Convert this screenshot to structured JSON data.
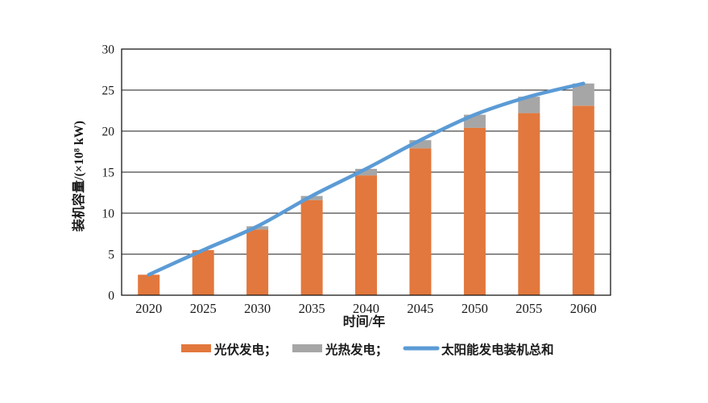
{
  "figure": {
    "background": "#ffffff"
  },
  "chart_data": {
    "type": "bar",
    "subtype": "stacked-bars-with-line-overlay",
    "title": "",
    "categories": [
      "2020",
      "2025",
      "2030",
      "2035",
      "2040",
      "2045",
      "2050",
      "2055",
      "2060"
    ],
    "series": [
      {
        "name": "光伏发电",
        "legend_label": "光伏发电；",
        "kind": "bar",
        "color": "#E2783D",
        "values": [
          2.5,
          5.5,
          8.0,
          11.6,
          14.6,
          17.9,
          20.4,
          22.2,
          23.1
        ]
      },
      {
        "name": "光热发电",
        "legend_label": "光热发电；",
        "kind": "bar",
        "color": "#A6A6A6",
        "values": [
          0,
          0,
          0.4,
          0.5,
          0.8,
          1.0,
          1.6,
          2.0,
          2.7
        ]
      },
      {
        "name": "太阳能发电装机总和",
        "legend_label": "太阳能发电装机总和",
        "kind": "line",
        "color": "#5B9BD5",
        "values": [
          2.5,
          5.5,
          8.4,
          12.1,
          15.4,
          18.9,
          22.0,
          24.2,
          25.8
        ]
      }
    ],
    "xlabel": "时间/年",
    "ylabel": "装机容量/(×10⁸ kW)",
    "ylim": [
      0,
      30
    ],
    "ytick_step": 5,
    "yticks": [
      0,
      5,
      10,
      15,
      20,
      25,
      30
    ],
    "grid": true,
    "legend_position": "bottom",
    "axis_color": "#1a1a1a"
  }
}
